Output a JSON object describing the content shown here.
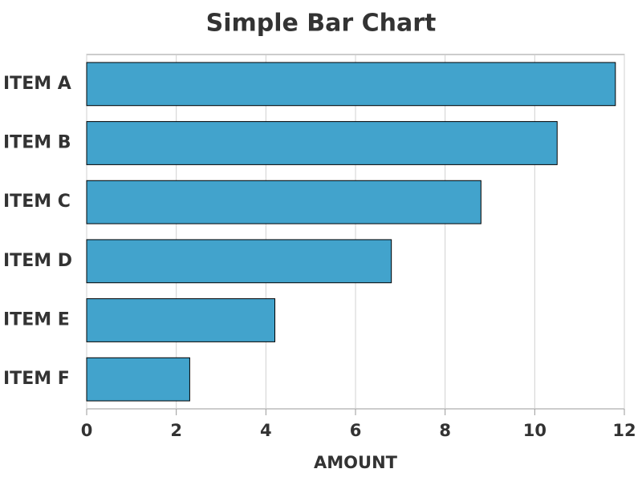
{
  "chart_data": {
    "type": "hbar",
    "title": "Simple Bar Chart",
    "x_label": "AMOUNT",
    "categories": [
      "ITEM A",
      "ITEM B",
      "ITEM C",
      "ITEM D",
      "ITEM E",
      "ITEM F"
    ],
    "values": [
      11.8,
      10.5,
      8.8,
      6.8,
      4.2,
      2.3
    ],
    "color": "#42a3cc",
    "xlim": [
      0,
      12
    ],
    "xticks": [
      0,
      2,
      4,
      6,
      8,
      10,
      12
    ],
    "grid": true
  }
}
